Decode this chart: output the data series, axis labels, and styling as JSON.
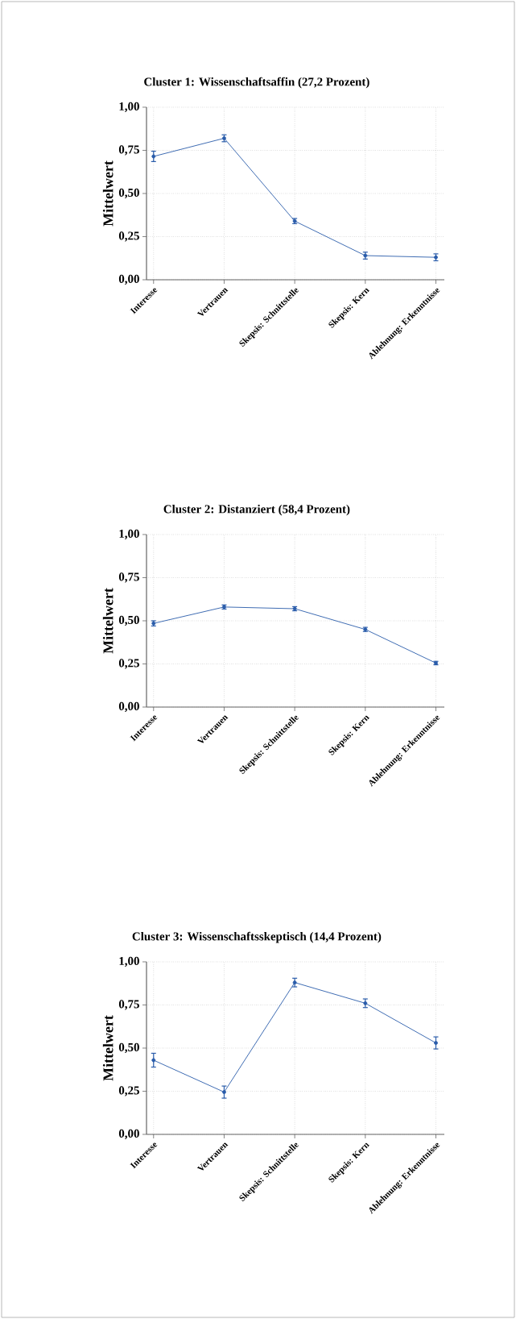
{
  "chart_data": [
    {
      "type": "line",
      "title": "Cluster 1: Wissenschaftsaffin (27,2 Prozent)",
      "ylabel": "Mittelwert",
      "categories": [
        "Interesse",
        "Vertrauen",
        "Skepsis: Schnittstelle",
        "Skepsis: Kern",
        "Ablehnung: Erkenntnisse"
      ],
      "values": [
        0.715,
        0.82,
        0.34,
        0.14,
        0.13
      ],
      "errors": [
        0.03,
        0.02,
        0.015,
        0.02,
        0.02
      ],
      "color": "#2a5caa",
      "ylim": [
        0,
        1
      ],
      "yticks": [
        {
          "value": 0,
          "label": "0,00"
        },
        {
          "value": 0.25,
          "label": "0,25"
        },
        {
          "value": 0.5,
          "label": "0,50"
        },
        {
          "value": 0.75,
          "label": "0,75"
        },
        {
          "value": 1,
          "label": "1,00"
        }
      ],
      "grid": true,
      "marker": "circle"
    },
    {
      "type": "line",
      "title": "Cluster 2: Distanziert (58,4 Prozent)",
      "ylabel": "Mittelwert",
      "categories": [
        "Interesse",
        "Vertrauen",
        "Skepsis: Schnittstelle",
        "Skepsis: Kern",
        "Ablehnung: Erkenntnisse"
      ],
      "values": [
        0.485,
        0.58,
        0.57,
        0.45,
        0.255
      ],
      "errors": [
        0.015,
        0.012,
        0.012,
        0.012,
        0.01
      ],
      "color": "#2a5caa",
      "ylim": [
        0,
        1
      ],
      "yticks": [
        {
          "value": 0,
          "label": "0,00"
        },
        {
          "value": 0.25,
          "label": "0,25"
        },
        {
          "value": 0.5,
          "label": "0,50"
        },
        {
          "value": 0.75,
          "label": "0,75"
        },
        {
          "value": 1,
          "label": "1,00"
        }
      ],
      "grid": true,
      "marker": "circle"
    },
    {
      "type": "line",
      "title": "Cluster 3: Wissenschaftsskeptisch (14,4 Prozent)",
      "ylabel": "Mittelwert",
      "categories": [
        "Interesse",
        "Vertrauen",
        "Skepsis: Schnittstelle",
        "Skepsis: Kern",
        "Ablehnung: Erkenntnisse"
      ],
      "values": [
        0.43,
        0.245,
        0.88,
        0.76,
        0.53
      ],
      "errors": [
        0.04,
        0.035,
        0.025,
        0.025,
        0.035
      ],
      "color": "#2a5caa",
      "ylim": [
        0,
        1
      ],
      "yticks": [
        {
          "value": 0,
          "label": "0,00"
        },
        {
          "value": 0.25,
          "label": "0,25"
        },
        {
          "value": 0.5,
          "label": "0,50"
        },
        {
          "value": 0.75,
          "label": "0,75"
        },
        {
          "value": 1,
          "label": "1,00"
        }
      ],
      "grid": true,
      "marker": "circle"
    }
  ]
}
